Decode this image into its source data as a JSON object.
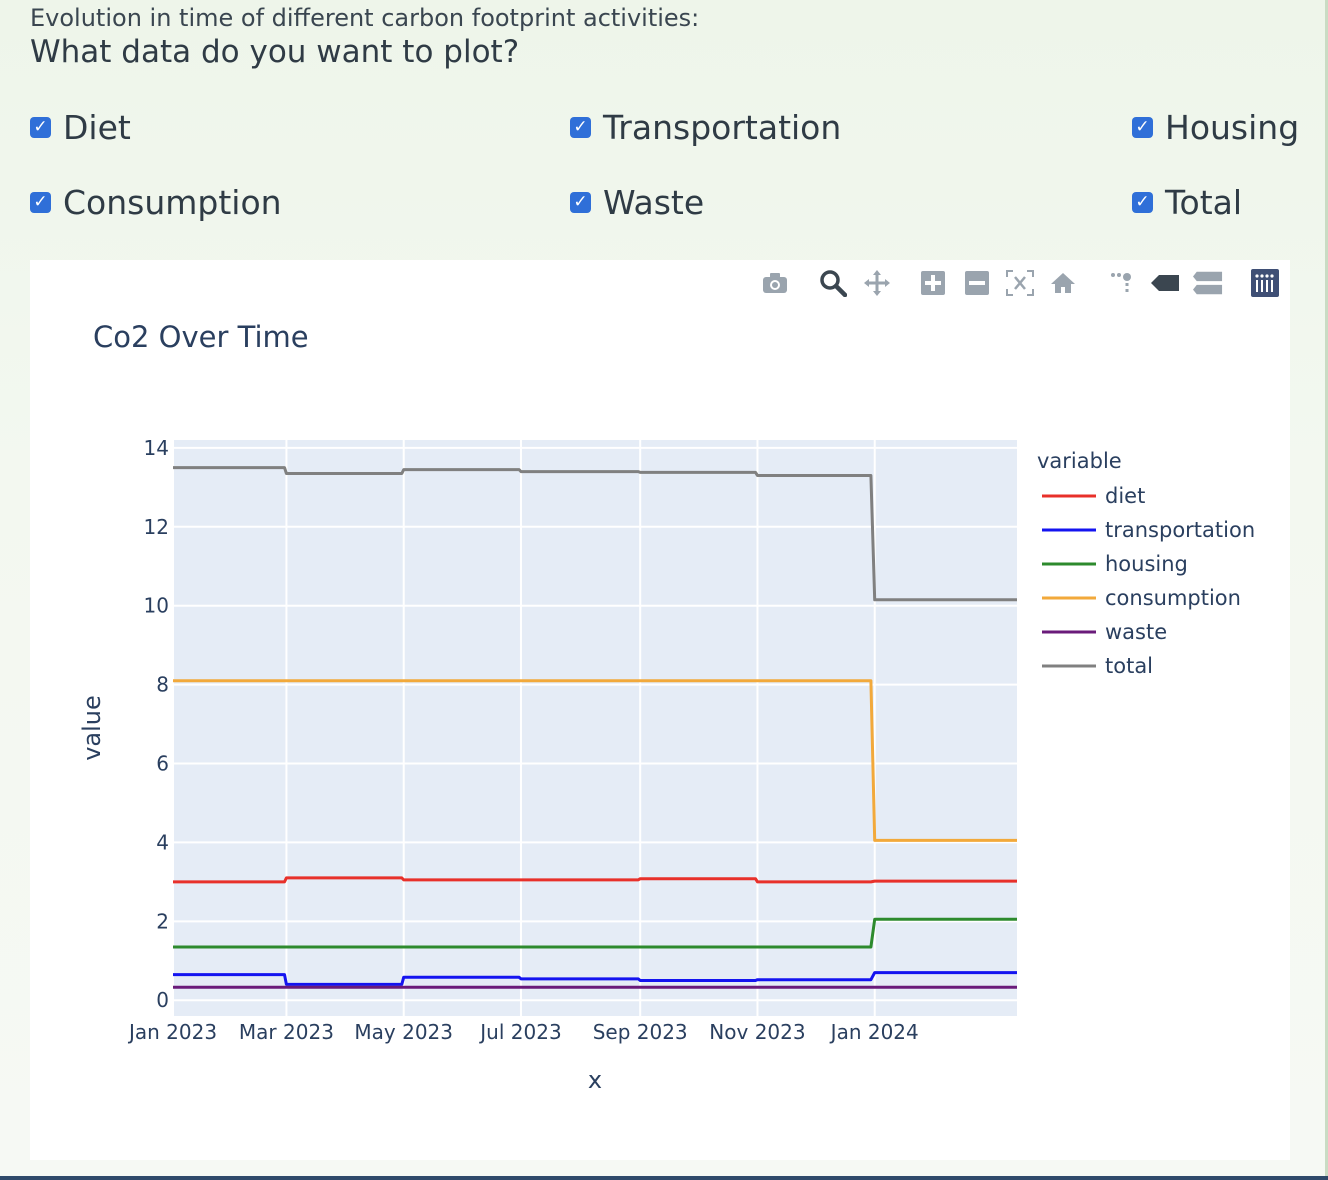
{
  "header": {
    "subtitle": "Evolution in time of different carbon footprint activities:",
    "question": "What data do you want to plot?"
  },
  "checkboxes": [
    {
      "label": "Diet",
      "checked": true
    },
    {
      "label": "Transportation",
      "checked": true
    },
    {
      "label": "Housing",
      "checked": true
    },
    {
      "label": "Consumption",
      "checked": true
    },
    {
      "label": "Waste",
      "checked": true
    },
    {
      "label": "Total",
      "checked": true
    }
  ],
  "modebar_icons": [
    "camera-icon",
    "zoom-icon",
    "pan-icon",
    "zoom-in-icon",
    "zoom-out-icon",
    "autoscale-icon",
    "reset-axes-icon",
    "spike-lines-icon",
    "hover-closest-icon",
    "hover-compare-icon",
    "plotly-logo-icon"
  ],
  "chart_data": {
    "type": "line",
    "title": "Co2 Over Time",
    "xlabel": "x",
    "ylabel": "value",
    "ylim": [
      -0.4,
      14.2
    ],
    "xlim": [
      "2023-01-01",
      "2024-03-15"
    ],
    "yticks": [
      0,
      2,
      4,
      6,
      8,
      10,
      12,
      14
    ],
    "xticks": [
      "Jan 2023",
      "Mar 2023",
      "May 2023",
      "Jul 2023",
      "Sep 2023",
      "Nov 2023",
      "Jan 2024"
    ],
    "xtick_dates": [
      "2023-01-01",
      "2023-03-01",
      "2023-05-01",
      "2023-07-01",
      "2023-09-01",
      "2023-11-01",
      "2024-01-01"
    ],
    "grid": true,
    "legend_title": "variable",
    "legend_position": "right",
    "x": [
      "2023-01-01",
      "2023-02-28",
      "2023-03-01",
      "2023-04-30",
      "2023-05-01",
      "2023-06-30",
      "2023-07-01",
      "2023-08-31",
      "2023-09-01",
      "2023-10-31",
      "2023-11-01",
      "2023-12-30",
      "2024-01-01",
      "2024-03-15"
    ],
    "series": [
      {
        "name": "diet",
        "color": "#e8302a",
        "values": [
          3.0,
          3.0,
          3.1,
          3.1,
          3.05,
          3.05,
          3.05,
          3.05,
          3.08,
          3.08,
          3.0,
          3.0,
          3.02,
          3.02
        ]
      },
      {
        "name": "transportation",
        "color": "#1414f0",
        "values": [
          0.65,
          0.65,
          0.4,
          0.4,
          0.58,
          0.58,
          0.54,
          0.54,
          0.5,
          0.5,
          0.52,
          0.52,
          0.7,
          0.7
        ]
      },
      {
        "name": "housing",
        "color": "#2d8a2d",
        "values": [
          1.35,
          1.35,
          1.35,
          1.35,
          1.35,
          1.35,
          1.35,
          1.35,
          1.35,
          1.35,
          1.35,
          1.35,
          2.05,
          2.05
        ]
      },
      {
        "name": "consumption",
        "color": "#f2a93b",
        "values": [
          8.1,
          8.1,
          8.1,
          8.1,
          8.1,
          8.1,
          8.1,
          8.1,
          8.1,
          8.1,
          8.1,
          8.1,
          4.05,
          4.05
        ]
      },
      {
        "name": "waste",
        "color": "#6a1b7a",
        "values": [
          0.33,
          0.33,
          0.33,
          0.33,
          0.33,
          0.33,
          0.33,
          0.33,
          0.33,
          0.33,
          0.33,
          0.33,
          0.33,
          0.33
        ]
      },
      {
        "name": "total",
        "color": "#808080",
        "values": [
          13.5,
          13.5,
          13.35,
          13.35,
          13.45,
          13.45,
          13.4,
          13.4,
          13.38,
          13.38,
          13.3,
          13.3,
          10.15,
          10.15
        ]
      }
    ]
  }
}
